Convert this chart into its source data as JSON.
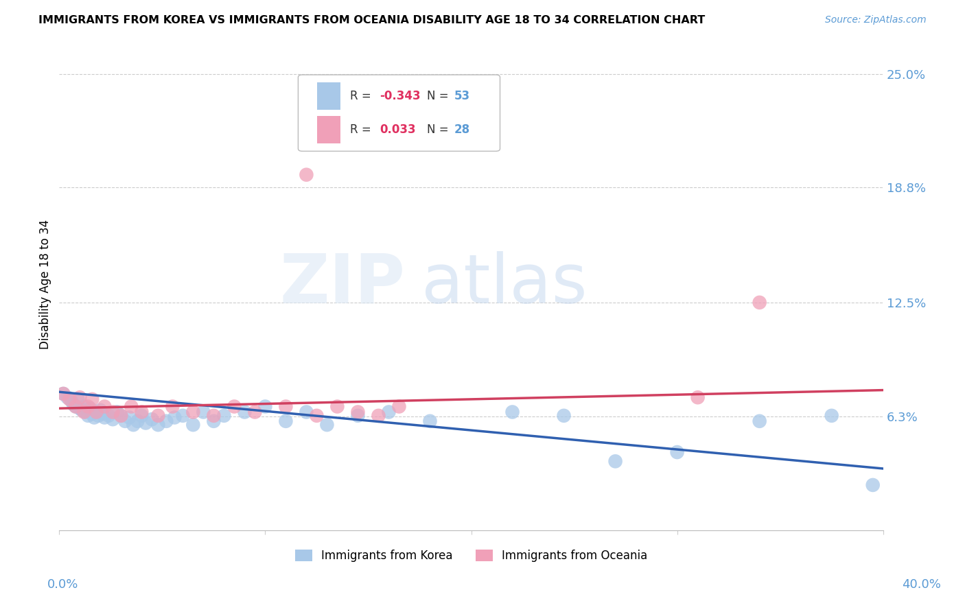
{
  "title": "IMMIGRANTS FROM KOREA VS IMMIGRANTS FROM OCEANIA DISABILITY AGE 18 TO 34 CORRELATION CHART",
  "source": "Source: ZipAtlas.com",
  "ylabel": "Disability Age 18 to 34",
  "xlim": [
    0.0,
    0.4
  ],
  "ylim": [
    0.0,
    0.27
  ],
  "ytick_vals": [
    0.0,
    0.0625,
    0.125,
    0.188,
    0.25
  ],
  "ytick_labels": [
    "",
    "6.3%",
    "12.5%",
    "18.8%",
    "25.0%"
  ],
  "legend_korea_r": "-0.343",
  "legend_korea_n": "53",
  "legend_oceania_r": "0.033",
  "legend_oceania_n": "28",
  "korea_color": "#a8c8e8",
  "oceania_color": "#f0a0b8",
  "korea_line_color": "#3060b0",
  "oceania_line_color": "#d04060",
  "korea_line_y_start": 0.076,
  "korea_line_y_end": 0.034,
  "oceania_line_y_start": 0.067,
  "oceania_line_y_end": 0.077,
  "korea_points_x": [
    0.002,
    0.004,
    0.006,
    0.007,
    0.008,
    0.009,
    0.01,
    0.011,
    0.012,
    0.013,
    0.014,
    0.015,
    0.016,
    0.017,
    0.018,
    0.019,
    0.02,
    0.021,
    0.022,
    0.024,
    0.026,
    0.028,
    0.03,
    0.032,
    0.034,
    0.036,
    0.038,
    0.04,
    0.042,
    0.045,
    0.048,
    0.052,
    0.056,
    0.06,
    0.065,
    0.07,
    0.075,
    0.08,
    0.09,
    0.1,
    0.11,
    0.12,
    0.13,
    0.145,
    0.16,
    0.18,
    0.22,
    0.245,
    0.27,
    0.3,
    0.34,
    0.375,
    0.395
  ],
  "korea_points_y": [
    0.075,
    0.073,
    0.071,
    0.069,
    0.068,
    0.072,
    0.067,
    0.066,
    0.068,
    0.065,
    0.063,
    0.067,
    0.064,
    0.062,
    0.065,
    0.063,
    0.066,
    0.064,
    0.062,
    0.063,
    0.061,
    0.065,
    0.063,
    0.06,
    0.062,
    0.058,
    0.06,
    0.063,
    0.059,
    0.061,
    0.058,
    0.06,
    0.062,
    0.063,
    0.058,
    0.065,
    0.06,
    0.063,
    0.065,
    0.068,
    0.06,
    0.065,
    0.058,
    0.063,
    0.065,
    0.06,
    0.065,
    0.063,
    0.038,
    0.043,
    0.06,
    0.063,
    0.025
  ],
  "oceania_points_x": [
    0.002,
    0.005,
    0.008,
    0.01,
    0.012,
    0.014,
    0.016,
    0.018,
    0.022,
    0.026,
    0.03,
    0.035,
    0.04,
    0.048,
    0.055,
    0.065,
    0.075,
    0.085,
    0.095,
    0.11,
    0.125,
    0.135,
    0.145,
    0.155,
    0.165,
    0.31,
    0.34,
    0.12
  ],
  "oceania_points_y": [
    0.075,
    0.072,
    0.068,
    0.073,
    0.065,
    0.068,
    0.072,
    0.065,
    0.068,
    0.065,
    0.063,
    0.068,
    0.065,
    0.063,
    0.068,
    0.065,
    0.063,
    0.068,
    0.065,
    0.068,
    0.063,
    0.068,
    0.065,
    0.063,
    0.068,
    0.073,
    0.125,
    0.195
  ]
}
